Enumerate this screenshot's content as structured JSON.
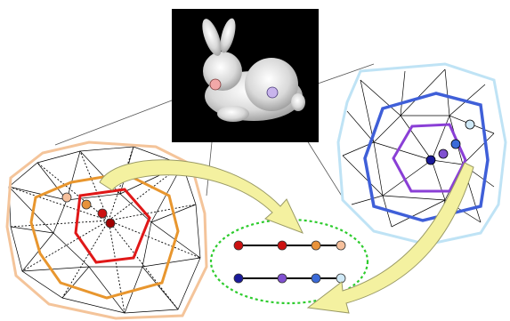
{
  "figure": {
    "panels": [
      {
        "id": "bunny-render",
        "icon": "stanford-bunny-icon"
      },
      {
        "id": "left-mesh-patch",
        "icon": "triangle-mesh-icon"
      },
      {
        "id": "right-mesh-patch",
        "icon": "triangle-mesh-icon"
      },
      {
        "id": "feature-vectors",
        "icon": "feature-vector-icon"
      }
    ],
    "colors": {
      "left_ring_outer": "#f4c49a",
      "left_ring_middle": "#e8962e",
      "left_ring_inner": "#e01818",
      "right_ring_outer": "#bfe3f5",
      "right_ring_middle": "#3f5fd8",
      "right_ring_inner": "#8a3fd6",
      "bunny_point_left": "#f2a8a8",
      "bunny_point_right": "#c8b4ec",
      "arrow_fill": "#f4f1a0",
      "arrow_stroke": "#9a9a66",
      "dotted_ellipse": "#2ecc2e",
      "background_black": "#000000"
    },
    "vector_rows": [
      {
        "name": "left-signature",
        "dots": [
          "#cc1111",
          "#cc1111",
          "#e8923a",
          "#f6c09c"
        ]
      },
      {
        "name": "right-signature",
        "dots": [
          "#1a1a9a",
          "#8050d0",
          "#3a6ad8",
          "#cfe9f7"
        ]
      }
    ]
  }
}
